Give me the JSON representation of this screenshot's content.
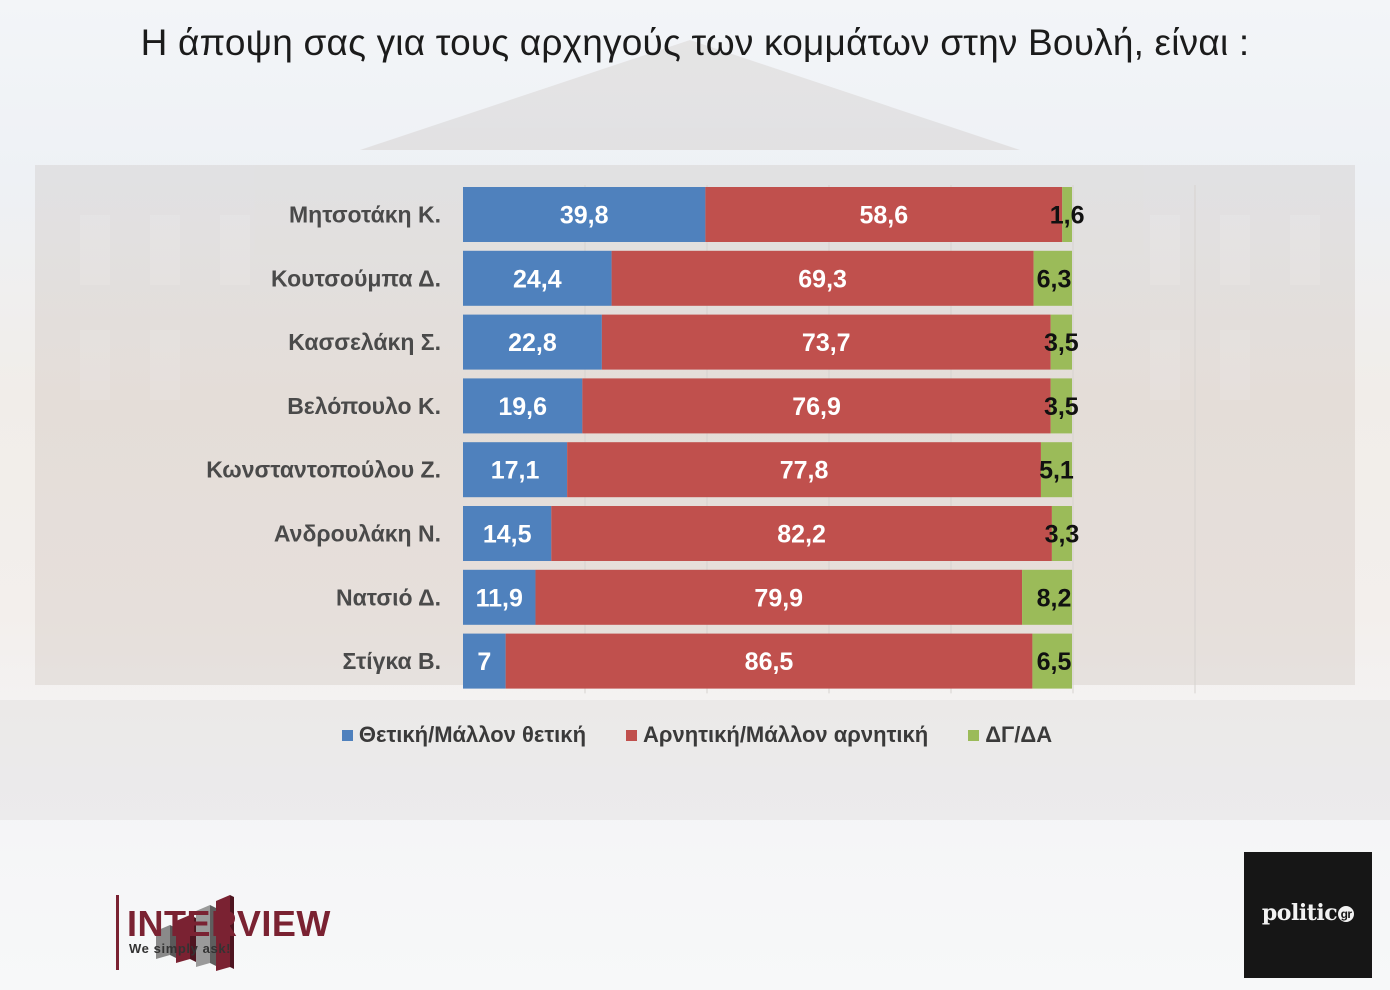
{
  "title": "Η άποψη σας για τους αρχηγούς των κομμάτων στην Βουλή,  είναι :",
  "colors": {
    "positive": "#4f81bd",
    "negative": "#c0504d",
    "dont_know": "#9bbb59"
  },
  "chart_data": {
    "type": "bar",
    "orientation": "horizontal",
    "stacked": true,
    "categories": [
      "Μητσοτάκη Κ.",
      "Κουτσούμπα Δ.",
      "Κασσελάκη Σ.",
      "Βελόπουλο Κ.",
      "Κωνσταντοπούλου Ζ.",
      "Ανδρουλάκη Ν.",
      "Νατσιό Δ.",
      "Στίγκα Β."
    ],
    "series": [
      {
        "name": "Θετική/Μάλλον θετική",
        "color": "#4f81bd",
        "values": [
          39.8,
          24.4,
          22.8,
          19.6,
          17.1,
          14.5,
          11.9,
          7
        ],
        "labels": [
          "39,8",
          "24,4",
          "22,8",
          "19,6",
          "17,1",
          "14,5",
          "11,9",
          "7"
        ]
      },
      {
        "name": "Αρνητική/Μάλλον αρνητική",
        "color": "#c0504d",
        "values": [
          58.6,
          69.3,
          73.7,
          76.9,
          77.8,
          82.2,
          79.9,
          86.5
        ],
        "labels": [
          "58,6",
          "69,3",
          "73,7",
          "76,9",
          "77,8",
          "82,2",
          "79,9",
          "86,5"
        ]
      },
      {
        "name": "ΔΓ/ΔΑ",
        "color": "#9bbb59",
        "values": [
          1.6,
          6.3,
          3.5,
          3.5,
          5.1,
          3.3,
          8.2,
          6.5
        ],
        "labels": [
          "1,6",
          "6,3",
          "3,5",
          "3,5",
          "5,1",
          "3,3",
          "8,2",
          "6,5"
        ]
      }
    ],
    "xlim": [
      0,
      100
    ],
    "legend_position": "bottom",
    "grid": true
  },
  "logos": {
    "left_name": "INTERVIEW",
    "left_tagline": "We simply ask!",
    "right_name": "politic",
    "right_suffix": "gr"
  }
}
